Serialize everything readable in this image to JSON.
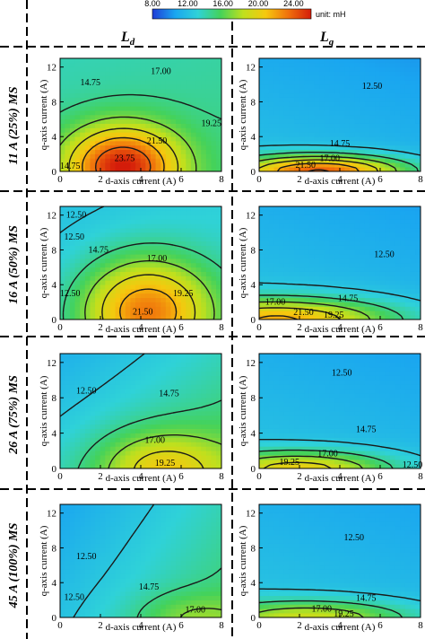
{
  "colorbar": {
    "ticks": [
      "8.00",
      "12.00",
      "16.00",
      "20.00",
      "24.00"
    ],
    "tick_values": [
      8,
      12,
      16,
      20,
      24
    ],
    "min": 8,
    "max": 26,
    "unit": "unit: mH",
    "colors": [
      "#1f3cd6",
      "#1aa6f0",
      "#2fd2d8",
      "#44d25a",
      "#bfe01e",
      "#f6c80e",
      "#f0700c",
      "#d41c0a"
    ]
  },
  "columns": [
    {
      "main": "L",
      "sub": "d"
    },
    {
      "main": "L",
      "sub": "q"
    }
  ],
  "rows": [
    {
      "label": "11 A (25%) MS"
    },
    {
      "label": "16 A (50%) MS"
    },
    {
      "label": "26 A (75%) MS"
    },
    {
      "label": "45 A (100%) MS"
    }
  ],
  "axes": {
    "xlabel": "d-axis current (A)",
    "ylabel": "q-axis current (A)",
    "xticks": [
      "0",
      "2",
      "4",
      "6",
      "8"
    ],
    "yticks": [
      "0",
      "4",
      "8",
      "12"
    ],
    "xlim": [
      0,
      8
    ],
    "ylim": [
      0,
      13
    ]
  },
  "chart_data": [
    {
      "type": "heatmap",
      "row": "11 A (25%) MS",
      "column": "Ld",
      "field": {
        "base": 14.5,
        "fx": 0.05,
        "fy": -0.05,
        "peaks": [
          {
            "x": 3.1,
            "y": 0.6,
            "a": 11.5,
            "sx": 2.0,
            "sy": 3.3
          }
        ]
      },
      "contour_labels": [
        {
          "text": "14.75",
          "x": 1.5,
          "y": 10.2
        },
        {
          "text": "17.00",
          "x": 5.0,
          "y": 11.5
        },
        {
          "text": "19.25",
          "x": 7.5,
          "y": 5.5
        },
        {
          "text": "21.50",
          "x": 4.8,
          "y": 3.5
        },
        {
          "text": "23.75",
          "x": 3.2,
          "y": 1.5
        },
        {
          "text": "14.75",
          "x": 0.5,
          "y": 0.6
        }
      ]
    },
    {
      "type": "heatmap",
      "row": "11 A (25%) MS",
      "column": "Lq",
      "field": {
        "base": 12.2,
        "fx": -0.08,
        "fy": -0.1,
        "peaks": [
          {
            "x": 3.0,
            "y": 0.1,
            "a": 12.0,
            "sx": 3.0,
            "sy": 1.25
          }
        ]
      },
      "contour_labels": [
        {
          "text": "12.50",
          "x": 5.6,
          "y": 9.8
        },
        {
          "text": "14.75",
          "x": 4.0,
          "y": 3.2
        },
        {
          "text": "17.00",
          "x": 3.5,
          "y": 1.5
        },
        {
          "text": "21.50",
          "x": 2.3,
          "y": 0.7
        }
      ]
    },
    {
      "type": "heatmap",
      "row": "16 A (50%) MS",
      "column": "Ld",
      "field": {
        "base": 12.8,
        "fx": 0.1,
        "fy": -0.05,
        "peaks": [
          {
            "x": 4.3,
            "y": 1.0,
            "a": 10.0,
            "sx": 2.3,
            "sy": 4.3
          }
        ]
      },
      "contour_labels": [
        {
          "text": "12.50",
          "x": 0.8,
          "y": 12.0
        },
        {
          "text": "12.50",
          "x": 0.7,
          "y": 9.5
        },
        {
          "text": "14.75",
          "x": 1.9,
          "y": 8.0
        },
        {
          "text": "17.00",
          "x": 4.8,
          "y": 7.0
        },
        {
          "text": "19.25",
          "x": 6.1,
          "y": 3.0
        },
        {
          "text": "21.50",
          "x": 4.1,
          "y": 0.9
        },
        {
          "text": "12.50",
          "x": 0.5,
          "y": 3.0
        }
      ]
    },
    {
      "type": "heatmap",
      "row": "16 A (50%) MS",
      "column": "Lq",
      "field": {
        "base": 12.4,
        "fx": -0.08,
        "fy": -0.1,
        "peaks": [
          {
            "x": 1.0,
            "y": 0.0,
            "a": 9.5,
            "sx": 4.0,
            "sy": 1.75
          }
        ]
      },
      "contour_labels": [
        {
          "text": "12.50",
          "x": 6.2,
          "y": 7.5
        },
        {
          "text": "14.75",
          "x": 4.4,
          "y": 2.4
        },
        {
          "text": "17.00",
          "x": 0.8,
          "y": 2.0
        },
        {
          "text": "21.50",
          "x": 2.2,
          "y": 0.8
        },
        {
          "text": "19.25",
          "x": 3.7,
          "y": 0.5
        }
      ]
    },
    {
      "type": "heatmap",
      "row": "26 A (75%) MS",
      "column": "Ld",
      "field": {
        "base": 13.5,
        "fx": 0.32,
        "fy": -0.18,
        "peaks": [
          {
            "x": 5.0,
            "y": 0.0,
            "a": 5.5,
            "sx": 2.2,
            "sy": 3.0
          }
        ]
      },
      "contour_labels": [
        {
          "text": "12.50",
          "x": 1.3,
          "y": 8.8
        },
        {
          "text": "14.75",
          "x": 5.4,
          "y": 8.5
        },
        {
          "text": "17.00",
          "x": 4.7,
          "y": 3.2
        },
        {
          "text": "19.25",
          "x": 5.2,
          "y": 0.6
        }
      ]
    },
    {
      "type": "heatmap",
      "row": "26 A (75%) MS",
      "column": "Lq",
      "field": {
        "base": 12.4,
        "fx": -0.07,
        "fy": -0.1,
        "peaks": [
          {
            "x": 2.0,
            "y": 0.0,
            "a": 8.0,
            "sx": 3.2,
            "sy": 1.4
          }
        ]
      },
      "contour_labels": [
        {
          "text": "12.50",
          "x": 4.1,
          "y": 10.8
        },
        {
          "text": "14.75",
          "x": 5.3,
          "y": 4.4
        },
        {
          "text": "17.00",
          "x": 3.4,
          "y": 1.7
        },
        {
          "text": "19.25",
          "x": 1.5,
          "y": 0.7
        },
        {
          "text": "12.50",
          "x": 7.6,
          "y": 0.4
        }
      ]
    },
    {
      "type": "heatmap",
      "row": "45 A (100%) MS",
      "column": "Ld",
      "field": {
        "base": 12.2,
        "fx": 0.4,
        "fy": -0.12,
        "peaks": [
          {
            "x": 6.5,
            "y": 0.0,
            "a": 2.5,
            "sx": 2.0,
            "sy": 2.0
          }
        ]
      },
      "contour_labels": [
        {
          "text": "12.50",
          "x": 1.3,
          "y": 7.0
        },
        {
          "text": "14.75",
          "x": 4.4,
          "y": 3.5
        },
        {
          "text": "17.00",
          "x": 6.7,
          "y": 0.9
        },
        {
          "text": "12.50",
          "x": 0.7,
          "y": 2.3
        }
      ]
    },
    {
      "type": "heatmap",
      "row": "45 A (100%) MS",
      "column": "Lq",
      "field": {
        "base": 12.5,
        "fx": -0.07,
        "fy": -0.1,
        "peaks": [
          {
            "x": 2.5,
            "y": 0.0,
            "a": 6.5,
            "sx": 3.5,
            "sy": 1.4
          }
        ]
      },
      "contour_labels": [
        {
          "text": "12.50",
          "x": 4.7,
          "y": 9.2
        },
        {
          "text": "14.75",
          "x": 5.3,
          "y": 2.2
        },
        {
          "text": "17.00",
          "x": 3.1,
          "y": 1.0
        },
        {
          "text": "19.25",
          "x": 4.2,
          "y": 0.4
        }
      ]
    }
  ]
}
